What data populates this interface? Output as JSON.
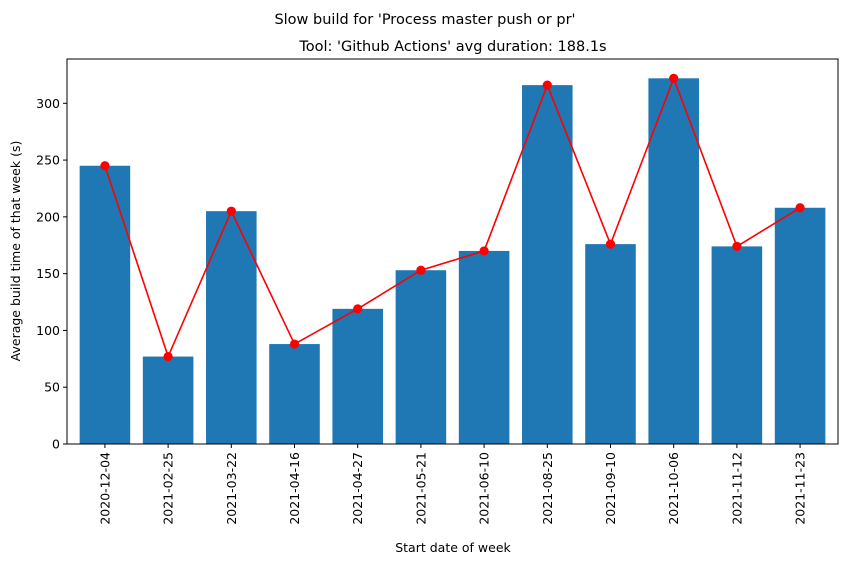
{
  "chart_data": {
    "type": "bar",
    "suptitle": "Slow build for 'Process master push or pr'",
    "title": "Tool: 'Github Actions' avg duration: 188.1s",
    "xlabel": "Start date of week",
    "ylabel": "Average build time of that week (s)",
    "categories": [
      "2020-12-04",
      "2021-02-25",
      "2021-03-22",
      "2021-04-16",
      "2021-04-27",
      "2021-05-21",
      "2021-06-10",
      "2021-08-25",
      "2021-09-10",
      "2021-10-06",
      "2021-11-12",
      "2021-11-23"
    ],
    "values": [
      245,
      77,
      205,
      88,
      119,
      153,
      170,
      316,
      176,
      322,
      174,
      208
    ],
    "yticks": [
      0,
      50,
      100,
      150,
      200,
      250,
      300
    ],
    "ylim": [
      0,
      339
    ],
    "grid": false,
    "bar_color": "#1f77b4",
    "line_color": "#ff0000"
  }
}
